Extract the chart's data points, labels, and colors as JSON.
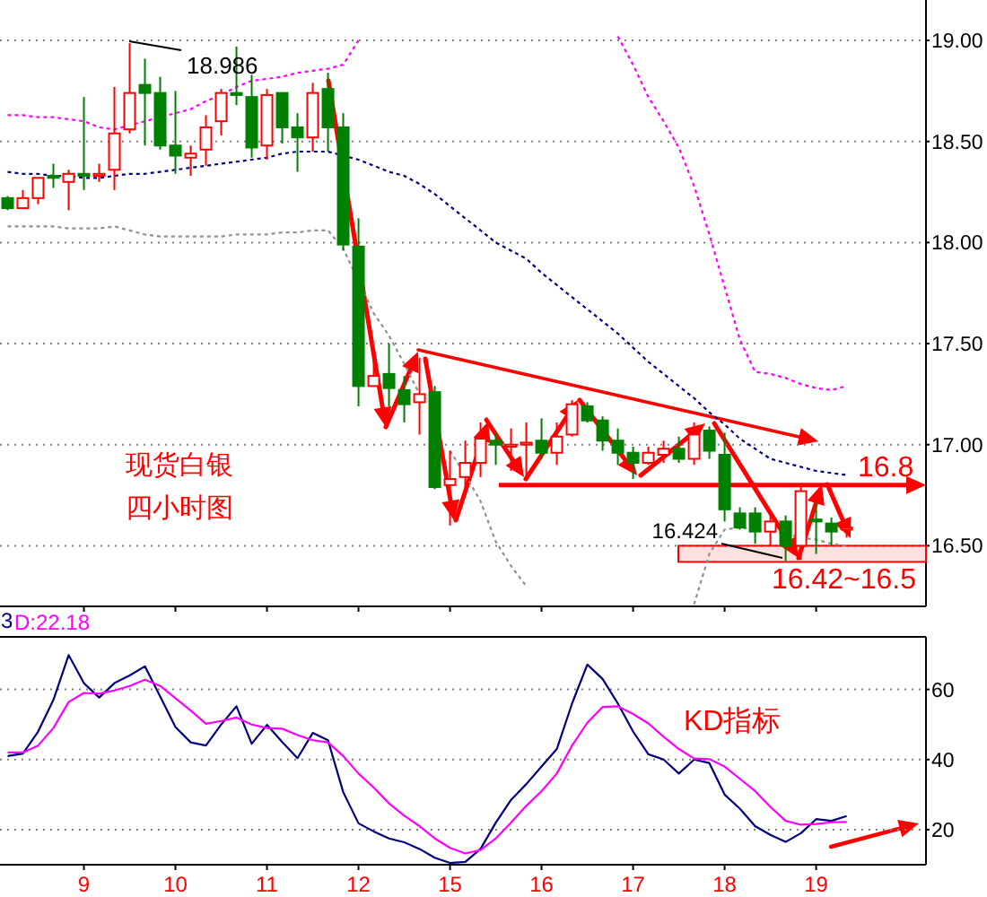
{
  "chart_data": [
    {
      "type": "candlestick",
      "categories": [
        null,
        null,
        null,
        null,
        null,
        "9",
        null,
        null,
        null,
        null,
        null,
        "10",
        null,
        null,
        null,
        null,
        null,
        "11",
        null,
        null,
        null,
        null,
        null,
        "12",
        null,
        null,
        null,
        null,
        null,
        "15",
        null,
        null,
        null,
        null,
        null,
        "16",
        null,
        null,
        null,
        null,
        null,
        "17",
        null,
        null,
        null,
        null,
        null,
        "18",
        null,
        null,
        null,
        null,
        null,
        "19",
        null,
        null
      ],
      "ohlc": [
        [
          18.22,
          18.23,
          18.16,
          18.17
        ],
        [
          18.17,
          18.26,
          18.17,
          18.22
        ],
        [
          18.22,
          18.32,
          18.19,
          18.32
        ],
        [
          18.33,
          18.39,
          18.27,
          18.32
        ],
        [
          18.3,
          18.36,
          18.16,
          18.34
        ],
        [
          18.34,
          18.72,
          18.26,
          18.33
        ],
        [
          18.33,
          18.39,
          18.3,
          18.34
        ],
        [
          18.36,
          18.77,
          18.26,
          18.54
        ],
        [
          18.56,
          18.986,
          18.54,
          18.74
        ],
        [
          18.78,
          18.91,
          18.48,
          18.74
        ],
        [
          18.74,
          18.82,
          18.46,
          18.48
        ],
        [
          18.48,
          18.75,
          18.34,
          18.43
        ],
        [
          18.42,
          18.48,
          18.33,
          18.44
        ],
        [
          18.46,
          18.63,
          18.38,
          18.57
        ],
        [
          18.6,
          18.76,
          18.53,
          18.74
        ],
        [
          18.74,
          18.97,
          18.68,
          18.73
        ],
        [
          18.72,
          18.83,
          18.42,
          18.47
        ],
        [
          18.48,
          18.76,
          18.41,
          18.73
        ],
        [
          18.74,
          18.74,
          18.49,
          18.57
        ],
        [
          18.57,
          18.64,
          18.35,
          18.52
        ],
        [
          18.52,
          18.79,
          18.45,
          18.74
        ],
        [
          18.76,
          18.84,
          18.45,
          18.57
        ],
        [
          18.57,
          18.64,
          17.96,
          17.99
        ],
        [
          17.98,
          18.12,
          17.19,
          17.29
        ],
        [
          17.29,
          17.44,
          17.29,
          17.34
        ],
        [
          17.35,
          17.5,
          17.19,
          17.28
        ],
        [
          17.27,
          17.34,
          17.11,
          17.2
        ],
        [
          17.21,
          17.43,
          17.05,
          17.25
        ],
        [
          17.26,
          17.29,
          16.78,
          16.79
        ],
        [
          16.8,
          16.97,
          16.6,
          16.83
        ],
        [
          16.84,
          17.02,
          16.78,
          16.91
        ],
        [
          16.91,
          17.11,
          16.84,
          17.03
        ],
        [
          17.02,
          17.06,
          16.9,
          17.0
        ],
        [
          16.99,
          17.08,
          16.87,
          17.0
        ],
        [
          17.0,
          17.11,
          16.84,
          17.01
        ],
        [
          17.02,
          17.13,
          16.93,
          16.96
        ],
        [
          16.96,
          17.11,
          16.9,
          17.04
        ],
        [
          17.05,
          17.22,
          17.04,
          17.2
        ],
        [
          17.19,
          17.21,
          17.11,
          17.12
        ],
        [
          17.12,
          17.14,
          16.97,
          17.02
        ],
        [
          17.02,
          17.08,
          16.9,
          16.96
        ],
        [
          16.96,
          16.99,
          16.83,
          16.91
        ],
        [
          16.91,
          16.99,
          16.9,
          16.96
        ],
        [
          16.95,
          17.02,
          16.91,
          16.98
        ],
        [
          16.98,
          17.04,
          16.91,
          16.93
        ],
        [
          16.93,
          17.11,
          16.9,
          17.05
        ],
        [
          17.07,
          17.09,
          16.93,
          16.97
        ],
        [
          16.95,
          17.06,
          16.62,
          16.68
        ],
        [
          16.66,
          16.69,
          16.58,
          16.59
        ],
        [
          16.66,
          16.69,
          16.51,
          16.57
        ],
        [
          16.57,
          16.66,
          16.5,
          16.62
        ],
        [
          16.62,
          16.65,
          16.424,
          16.5
        ],
        [
          16.5,
          16.8,
          16.43,
          16.77
        ],
        [
          16.63,
          16.71,
          16.46,
          16.62
        ],
        [
          16.61,
          16.64,
          16.5,
          16.57
        ],
        [
          16.58,
          16.62,
          16.54,
          16.59
        ]
      ],
      "series": [
        {
          "type": "line",
          "color": "#ff00ff",
          "line_style": "dotted",
          "values": [
            18.63,
            18.63,
            18.62,
            18.62,
            18.61,
            18.6,
            18.57,
            18.56,
            18.58,
            18.6,
            18.62,
            18.64,
            18.66,
            18.7,
            18.73,
            18.77,
            18.8,
            18.81,
            18.82,
            18.84,
            18.85,
            18.86,
            18.88,
            19.0,
            null,
            null,
            null,
            null,
            null,
            null,
            null,
            null,
            null,
            null,
            null,
            null,
            null,
            null,
            null,
            null,
            19.02,
            18.88,
            18.72,
            18.6,
            18.47,
            18.28,
            18.04,
            17.78,
            17.52,
            17.36,
            17.35,
            17.33,
            17.3,
            17.28,
            17.27,
            17.29
          ]
        },
        {
          "type": "line",
          "color": "#000080",
          "line_style": "dotted",
          "values": [
            18.35,
            18.34,
            18.34,
            18.33,
            18.33,
            18.32,
            18.32,
            18.33,
            18.34,
            18.34,
            18.35,
            18.36,
            18.37,
            18.38,
            18.39,
            18.4,
            18.41,
            18.42,
            18.44,
            18.45,
            18.45,
            18.45,
            18.43,
            18.41,
            18.38,
            18.35,
            18.33,
            18.29,
            18.24,
            18.18,
            18.12,
            18.06,
            18.0,
            17.96,
            17.92,
            17.85,
            17.79,
            17.73,
            17.67,
            17.61,
            17.55,
            17.48,
            17.41,
            17.35,
            17.29,
            17.23,
            17.16,
            17.1,
            17.03,
            16.98,
            16.93,
            16.91,
            16.89,
            16.87,
            16.86,
            16.85
          ]
        },
        {
          "type": "line",
          "color": "#909090",
          "line_style": "dotted",
          "values": [
            18.08,
            18.08,
            18.08,
            18.08,
            18.07,
            18.07,
            18.07,
            18.08,
            18.06,
            18.04,
            18.03,
            18.03,
            18.03,
            18.03,
            18.03,
            18.04,
            18.04,
            18.04,
            18.05,
            18.05,
            18.06,
            18.06,
            17.97,
            17.81,
            17.65,
            17.54,
            17.4,
            17.25,
            null,
            16.97,
            16.85,
            16.72,
            16.52,
            16.4,
            16.3,
            null,
            null,
            null,
            null,
            null,
            null,
            null,
            null,
            null,
            null,
            16.21,
            16.46,
            16.58,
            16.59,
            16.58,
            16.57,
            16.56,
            16.54,
            16.53,
            16.51,
            16.5
          ]
        }
      ],
      "ylim": [
        16.2,
        19.2
      ],
      "yticks": [
        {
          "value": 16.5,
          "label": "16.50"
        },
        {
          "value": 17,
          "label": "17.00"
        },
        {
          "value": 17.5,
          "label": "17.50"
        },
        {
          "value": 18,
          "label": "18.00"
        },
        {
          "value": 18.5,
          "label": "18.50"
        },
        {
          "value": 19,
          "label": "19.00"
        }
      ],
      "tick_labels": "y",
      "grid": "y",
      "ref_lines": [
        {
          "axis": "y",
          "value": 16.8,
          "label": "16.8",
          "color": "#ff0000"
        }
      ],
      "bands": [
        {
          "axis": "y",
          "from": 16.42,
          "to": 16.5,
          "label": "16.42~16.5",
          "color": "#ff0000"
        }
      ],
      "annotations": [
        "18.986",
        "16.424",
        "现货白银",
        "四小时图"
      ]
    },
    {
      "type": "line",
      "categories": [
        null,
        null,
        null,
        null,
        null,
        "9",
        null,
        null,
        null,
        null,
        null,
        "10",
        null,
        null,
        null,
        null,
        null,
        "11",
        null,
        null,
        null,
        null,
        null,
        "12",
        null,
        null,
        null,
        null,
        null,
        "15",
        null,
        null,
        null,
        null,
        null,
        "16",
        null,
        null,
        null,
        null,
        null,
        "17",
        null,
        null,
        null,
        null,
        null,
        "18",
        null,
        null,
        null,
        null,
        null,
        "19",
        null,
        null
      ],
      "series": [
        {
          "color": "#000080",
          "values": [
            41,
            41.7,
            48,
            57,
            69.8,
            61.8,
            57.7,
            61.8,
            64,
            66.6,
            58,
            49.3,
            44.9,
            44,
            50,
            55.2,
            44.5,
            49.9,
            45,
            40.4,
            47.6,
            45.5,
            30.7,
            21.8,
            19.5,
            17.5,
            16.4,
            14.5,
            12,
            10.5,
            10.8,
            14.5,
            22,
            28.5,
            33,
            38,
            43,
            56,
            67.1,
            63,
            56,
            48,
            41.5,
            40,
            36,
            40,
            39,
            30,
            26,
            21,
            18.5,
            16.5,
            19,
            23,
            22.5,
            23.9
          ]
        },
        {
          "name": "D:22.18",
          "color": "#ff00ff",
          "values": [
            42,
            42,
            44,
            49,
            56.4,
            59,
            58.8,
            59.7,
            61,
            62.8,
            61,
            57.5,
            54,
            50.2,
            51,
            52,
            50,
            49,
            48.8,
            47,
            45.5,
            44.9,
            41,
            36,
            32,
            27.5,
            24,
            21,
            17.5,
            14.8,
            13.2,
            14.2,
            17.5,
            22,
            26.8,
            31,
            36,
            44,
            50.5,
            55,
            55.2,
            53,
            50.3,
            46.5,
            43,
            40.3,
            40.1,
            38,
            34.5,
            31,
            26.5,
            22.5,
            21.4,
            21.6,
            22.1,
            22.18
          ]
        }
      ],
      "ylim": [
        10,
        75
      ],
      "yticks": [
        20,
        40,
        60
      ],
      "grid": "y",
      "legend": "top left",
      "annotations": [
        "3",
        "KD指标"
      ]
    }
  ]
}
